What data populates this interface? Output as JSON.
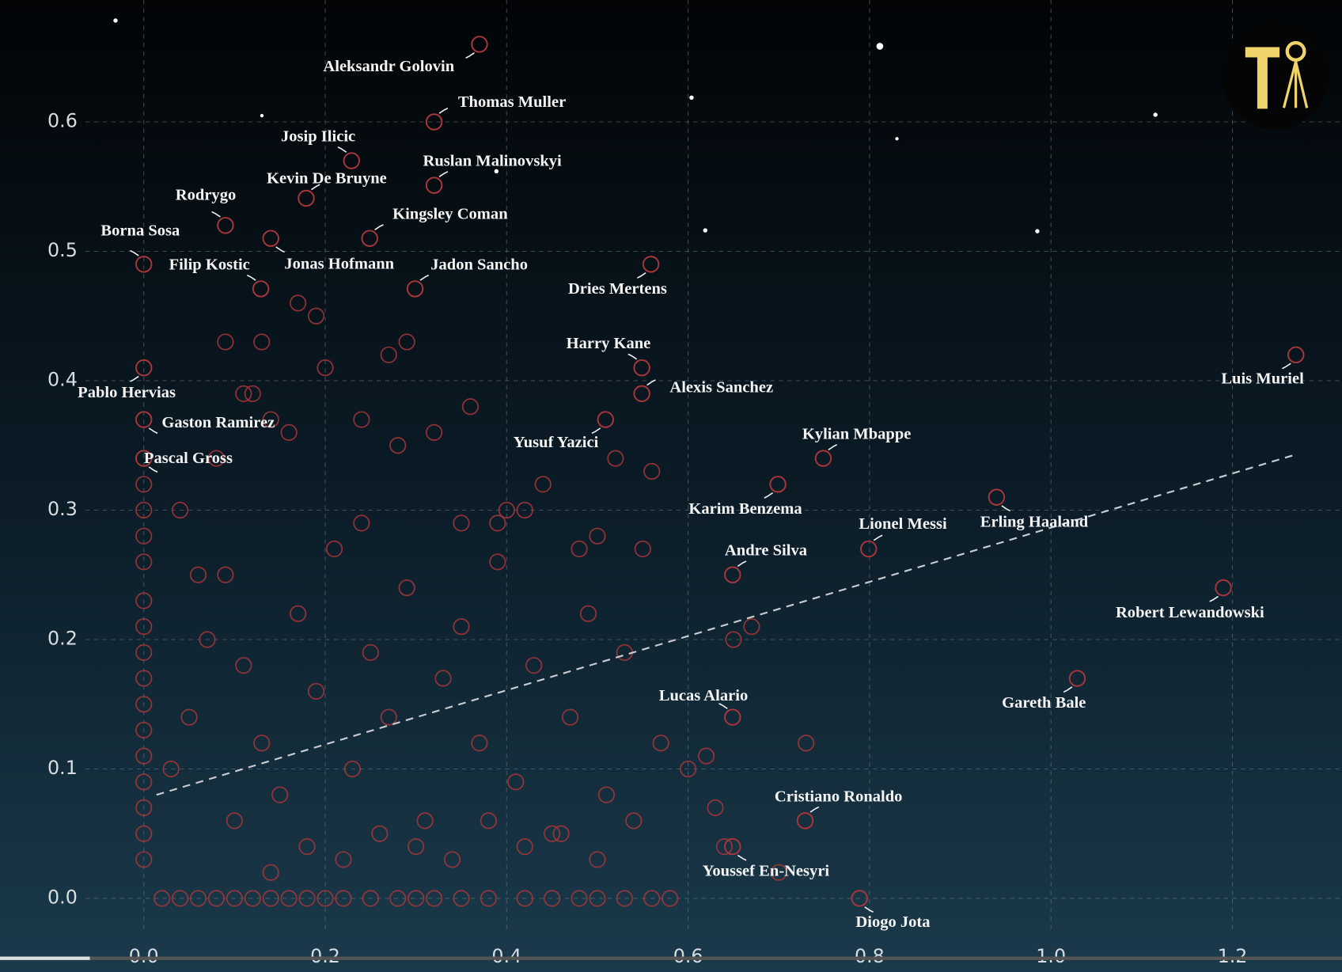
{
  "chart_data": {
    "type": "scatter",
    "xlim": [
      -0.1585,
      1.3208
    ],
    "ylim": [
      -0.0569,
      0.6942
    ],
    "xticks": [
      {
        "value": 0,
        "label": "0.0"
      },
      0.2,
      0.4,
      0.6,
      0.8,
      {
        "value": 1,
        "label": "1.0"
      },
      1.2
    ],
    "yticks": [
      {
        "value": 0,
        "label": "0.0"
      },
      0.1,
      0.2,
      0.3,
      0.4,
      0.5,
      0.6
    ],
    "grid": true,
    "points": {
      "color": "#a8363a",
      "x": [
        0,
        0,
        0,
        0,
        0,
        0,
        0,
        0,
        0,
        0,
        0,
        0,
        0,
        0,
        0,
        0.02,
        0.04,
        0.06,
        0.08,
        0.1,
        0.12,
        0.14,
        0.16,
        0.18,
        0.2,
        0.22,
        0.25,
        0.28,
        0.3,
        0.32,
        0.35,
        0.38,
        0.42,
        0.45,
        0.48,
        0.5,
        0.53,
        0.56,
        0.58,
        0.03,
        0.05,
        0.07,
        0.09,
        0.11,
        0.13,
        0.15,
        0.17,
        0.19,
        0.21,
        0.23,
        0.25,
        0.27,
        0.29,
        0.31,
        0.33,
        0.35,
        0.37,
        0.39,
        0.41,
        0.43,
        0.45,
        0.47,
        0.49,
        0.51,
        0.53,
        0.55,
        0.57,
        0.6,
        0.63,
        0.65,
        0.67,
        0.73,
        0.7,
        0.04,
        0.08,
        0.12,
        0.16,
        0.2,
        0.24,
        0.28,
        0.32,
        0.36,
        0.4,
        0.44,
        0.48,
        0.52,
        0.56,
        0.13,
        0.17,
        0.19,
        0.27,
        0.29,
        0.06,
        0.1,
        0.14,
        0.18,
        0.22,
        0.26,
        0.3,
        0.34,
        0.38,
        0.42,
        0.46,
        0.5,
        0.54,
        0.62,
        0.64,
        0.09,
        0.11,
        0.14,
        0.24,
        0.35,
        0.39,
        0.42,
        0.5
      ],
      "y": [
        0.03,
        0.05,
        0.07,
        0.09,
        0.11,
        0.13,
        0.15,
        0.17,
        0.19,
        0.21,
        0.23,
        0.26,
        0.28,
        0.3,
        0.32,
        0,
        0,
        0,
        0,
        0,
        0,
        0,
        0,
        0,
        0,
        0,
        0,
        0,
        0,
        0,
        0,
        0,
        0,
        0,
        0,
        0,
        0,
        0,
        0,
        0.1,
        0.14,
        0.2,
        0.25,
        0.18,
        0.12,
        0.08,
        0.22,
        0.16,
        0.27,
        0.1,
        0.19,
        0.14,
        0.24,
        0.06,
        0.17,
        0.21,
        0.12,
        0.26,
        0.09,
        0.18,
        0.05,
        0.14,
        0.22,
        0.08,
        0.19,
        0.27,
        0.12,
        0.1,
        0.07,
        0.2,
        0.21,
        0.12,
        0.02,
        0.3,
        0.34,
        0.39,
        0.36,
        0.41,
        0.37,
        0.35,
        0.36,
        0.38,
        0.3,
        0.32,
        0.27,
        0.34,
        0.33,
        0.43,
        0.46,
        0.45,
        0.42,
        0.43,
        0.25,
        0.06,
        0.02,
        0.04,
        0.03,
        0.05,
        0.04,
        0.03,
        0.06,
        0.04,
        0.05,
        0.03,
        0.06,
        0.11,
        0.04,
        0.43,
        0.39,
        0.37,
        0.29,
        0.29,
        0.29,
        0.3,
        0.28
      ]
    },
    "labeled_points": {
      "color": "#a8363a",
      "labels": [
        "Aleksandr Golovin",
        "Thomas Muller",
        "Josip Ilicic",
        "Ruslan Malinovskyi",
        "Kevin De Bruyne",
        "Rodrygo",
        "Kingsley Coman",
        "Borna Sosa",
        "Jonas Hofmann",
        "Filip Kostic",
        "Jadon Sancho",
        "Dries Mertens",
        "Harry Kane",
        "Alexis Sanchez",
        "Luis Muriel",
        "Pablo Hervias",
        "Gaston Ramirez",
        "Pascal Gross",
        "Yusuf Yazici",
        "Kylian Mbappe",
        "Karim Benzema",
        "Erling Haaland",
        "Lionel Messi",
        "Andre Silva",
        "Robert Lewandowski",
        "Gareth Bale",
        "Lucas Alario",
        "Cristiano Ronaldo",
        "Youssef En-Nesyri",
        "Diogo Jota"
      ],
      "x": [
        0.37,
        0.32,
        0.229,
        0.32,
        0.179,
        0.09,
        0.249,
        0,
        0.14,
        0.129,
        0.299,
        0.559,
        0.549,
        0.549,
        1.27,
        0,
        0,
        0,
        0.509,
        0.749,
        0.699,
        0.94,
        0.799,
        0.649,
        1.19,
        1.029,
        0.649,
        0.729,
        0.649,
        0.789
      ],
      "y": [
        0.66,
        0.6,
        0.57,
        0.551,
        0.541,
        0.52,
        0.51,
        0.49,
        0.51,
        0.471,
        0.471,
        0.49,
        0.41,
        0.39,
        0.42,
        0.41,
        0.37,
        0.34,
        0.37,
        0.34,
        0.32,
        0.31,
        0.27,
        0.25,
        0.24,
        0.17,
        0.14,
        0.06,
        0.04,
        0
      ]
    },
    "trendline": {
      "color": "#c8ccd0",
      "x": [
        0.014,
        1.27
      ],
      "y": [
        0.08,
        0.343
      ]
    }
  }
}
